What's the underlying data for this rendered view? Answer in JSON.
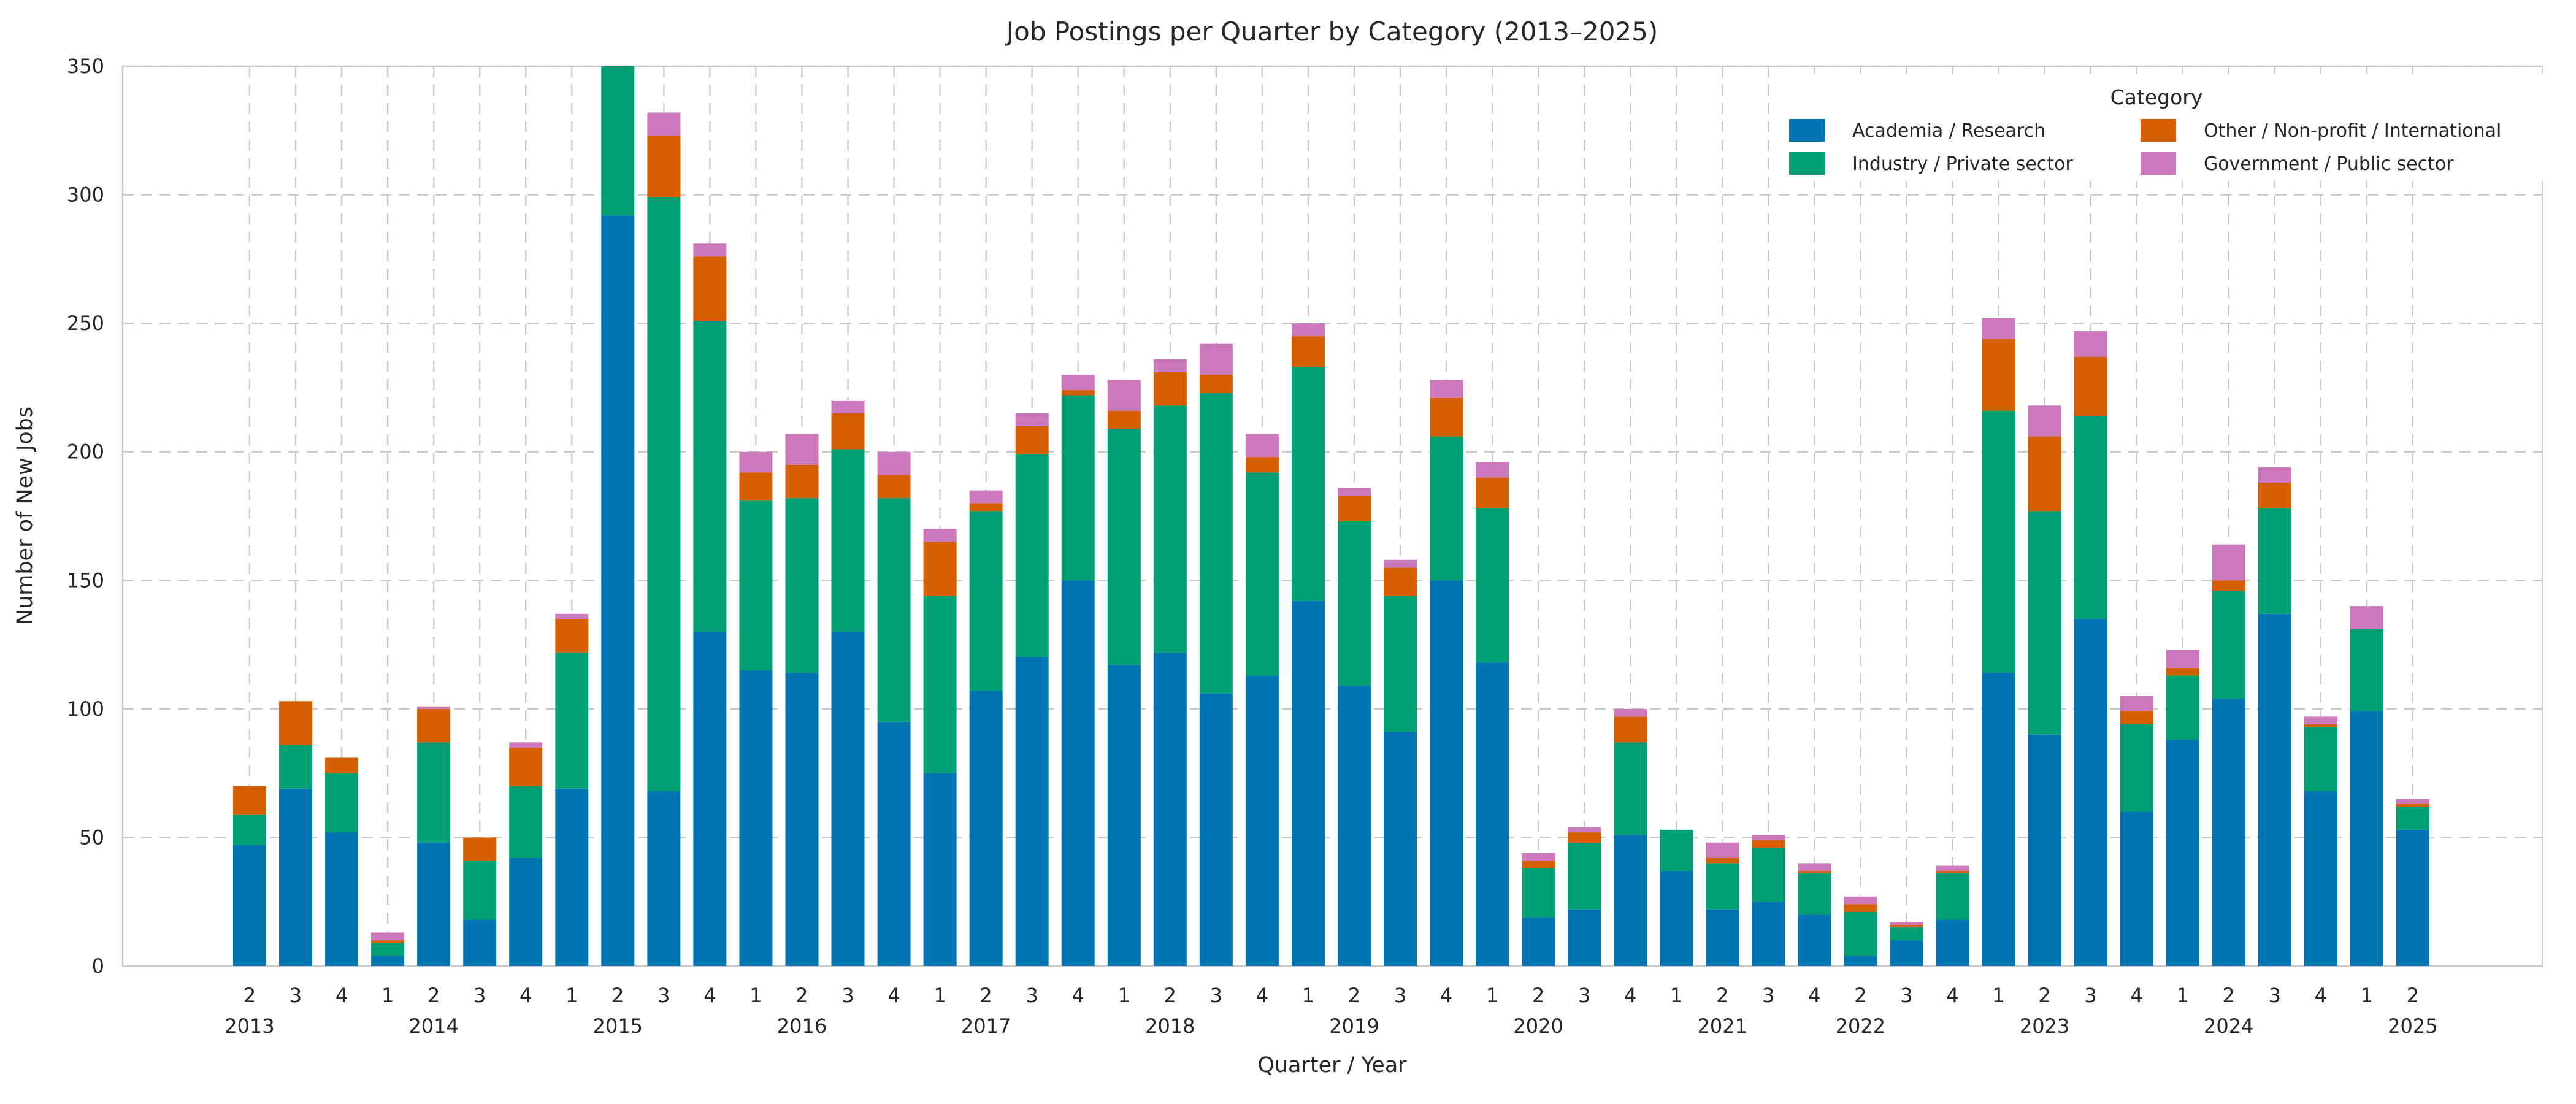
{
  "chart_data": {
    "type": "bar",
    "stacked": true,
    "title": "Job Postings per Quarter by Category (2013–2025)",
    "xlabel": "Quarter / Year",
    "ylabel": "Number of New Jobs",
    "ylim": [
      0,
      350
    ],
    "yticks": [
      0,
      50,
      100,
      150,
      200,
      250,
      300,
      350
    ],
    "grid": {
      "horizontal": true,
      "vertical": true,
      "style": "dashed",
      "color": "#c9c9c9"
    },
    "background": "#ffffff",
    "text_color": "#262626",
    "legend": {
      "title": "Category",
      "position": "upper-right",
      "columns": 2
    },
    "quarter_labels": [
      "2",
      "3",
      "4",
      "1",
      "2",
      "3",
      "4",
      "1",
      "2",
      "3",
      "4",
      "1",
      "2",
      "3",
      "4",
      "1",
      "2",
      "3",
      "4",
      "1",
      "2",
      "3",
      "4",
      "1",
      "2",
      "3",
      "4",
      "1",
      "2",
      "3",
      "4",
      "1",
      "2",
      "3",
      "4",
      "2",
      "3",
      "4",
      "1",
      "2",
      "3",
      "4",
      "1",
      "2",
      "3",
      "4",
      "1",
      "2"
    ],
    "year_labels": [
      {
        "label": "2013",
        "index": 0
      },
      {
        "label": "2014",
        "index": 4
      },
      {
        "label": "2015",
        "index": 8
      },
      {
        "label": "2016",
        "index": 12
      },
      {
        "label": "2017",
        "index": 16
      },
      {
        "label": "2018",
        "index": 20
      },
      {
        "label": "2019",
        "index": 24
      },
      {
        "label": "2020",
        "index": 28
      },
      {
        "label": "2021",
        "index": 32
      },
      {
        "label": "2022",
        "index": 35
      },
      {
        "label": "2023",
        "index": 39
      },
      {
        "label": "2024",
        "index": 43
      },
      {
        "label": "2025",
        "index": 47
      }
    ],
    "series": [
      {
        "name": "Academia / Research",
        "color": "#0173b2",
        "values": [
          47,
          69,
          52,
          4,
          48,
          18,
          42,
          69,
          292,
          68,
          130,
          115,
          114,
          130,
          95,
          75,
          107,
          120,
          150,
          117,
          122,
          106,
          113,
          142,
          109,
          91,
          150,
          118,
          19,
          22,
          51,
          37,
          22,
          25,
          20,
          4,
          10,
          18,
          114,
          90,
          135,
          60,
          88,
          104,
          137,
          68,
          99,
          53
        ]
      },
      {
        "name": "Industry / Private sector",
        "color": "#029e73",
        "values": [
          12,
          17,
          23,
          5,
          39,
          23,
          28,
          53,
          58,
          231,
          121,
          66,
          68,
          71,
          87,
          69,
          70,
          79,
          72,
          92,
          96,
          117,
          79,
          91,
          64,
          53,
          56,
          60,
          19,
          26,
          36,
          16,
          18,
          21,
          16,
          17,
          5,
          18,
          102,
          87,
          79,
          34,
          25,
          42,
          41,
          25,
          32,
          9
        ]
      },
      {
        "name": "Other / Non-profit / International",
        "color": "#d55e00",
        "values": [
          11,
          17,
          6,
          1,
          13,
          9,
          15,
          13,
          0,
          24,
          25,
          11,
          13,
          14,
          9,
          21,
          3,
          11,
          2,
          7,
          13,
          7,
          6,
          12,
          10,
          11,
          15,
          12,
          3,
          4,
          10,
          0,
          2,
          3,
          1,
          3,
          1,
          1,
          28,
          29,
          23,
          5,
          3,
          4,
          10,
          1,
          0,
          1
        ]
      },
      {
        "name": "Government / Public sector",
        "color": "#cc78bc",
        "values": [
          0,
          0,
          0,
          3,
          1,
          0,
          2,
          2,
          0,
          9,
          5,
          8,
          12,
          5,
          9,
          5,
          5,
          5,
          6,
          12,
          5,
          12,
          9,
          5,
          3,
          3,
          7,
          6,
          3,
          2,
          3,
          0,
          6,
          2,
          3,
          3,
          1,
          2,
          8,
          12,
          10,
          6,
          7,
          14,
          6,
          3,
          9,
          2
        ]
      }
    ]
  }
}
